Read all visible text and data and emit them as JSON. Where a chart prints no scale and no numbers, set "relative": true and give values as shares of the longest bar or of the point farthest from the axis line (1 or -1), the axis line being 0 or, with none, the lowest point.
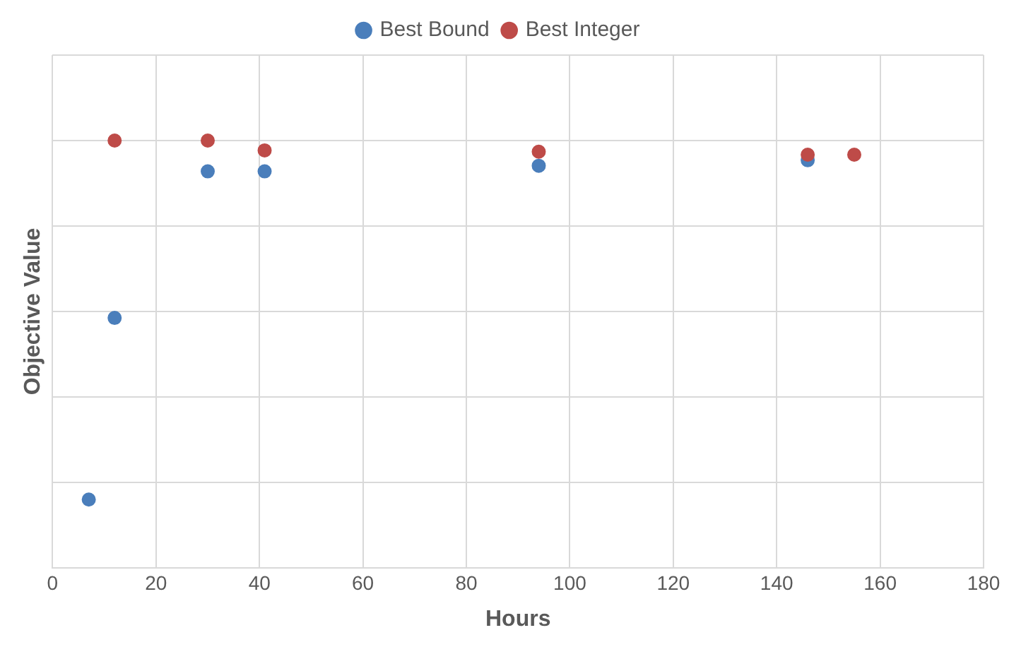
{
  "chart_data": {
    "type": "scatter",
    "xlabel": "Hours",
    "ylabel": "Objective Value",
    "relative": true,
    "xlim": [
      0,
      180
    ],
    "xticks": [
      0,
      20,
      40,
      60,
      80,
      100,
      120,
      140,
      160,
      180
    ],
    "grid": true,
    "legend": "top",
    "marker": "circle",
    "series": [
      {
        "name": "Best Bound",
        "color": "#4a7ebb",
        "x": [
          7,
          12,
          30,
          41,
          94,
          146
        ],
        "values": [
          0.16,
          0.585,
          0.928,
          0.928,
          0.941,
          0.954
        ]
      },
      {
        "name": "Best Integer",
        "color": "#be4b48",
        "x": [
          12,
          30,
          41,
          94,
          146,
          155
        ],
        "values": [
          1,
          1,
          0.977,
          0.974,
          0.967,
          0.967
        ]
      }
    ]
  }
}
